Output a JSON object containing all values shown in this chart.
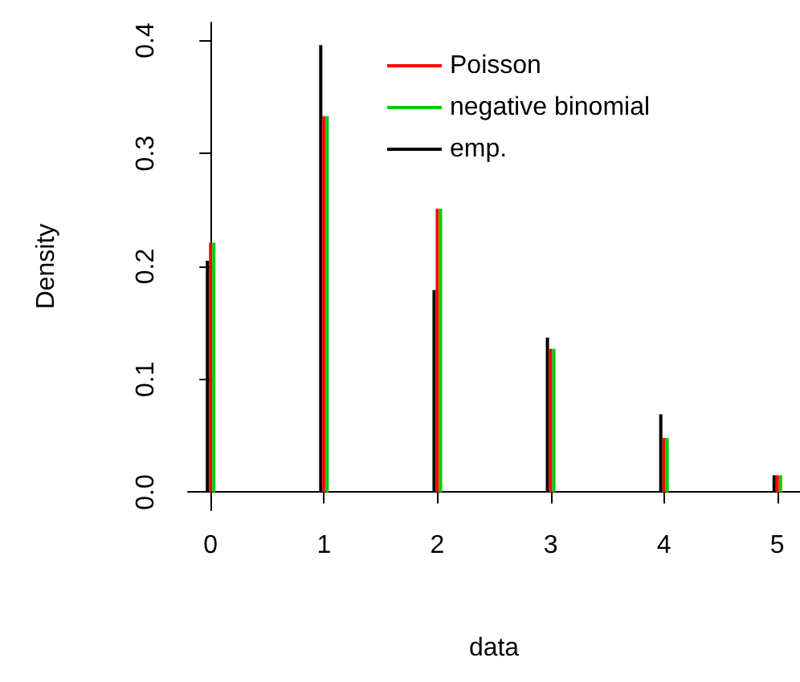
{
  "chart_data": {
    "type": "bar",
    "xlabel": "data",
    "ylabel": "Density",
    "x": [
      0,
      1,
      2,
      3,
      4,
      5
    ],
    "series": [
      {
        "name": "Poisson",
        "color": "#ff0000",
        "values": [
          0.221,
          0.333,
          0.251,
          0.127,
          0.048,
          0.015
        ]
      },
      {
        "name": "negative binomial",
        "color": "#00cc00",
        "values": [
          0.221,
          0.333,
          0.251,
          0.127,
          0.048,
          0.015
        ]
      },
      {
        "name": "emp.",
        "color": "#000000",
        "values": [
          0.205,
          0.396,
          0.179,
          0.137,
          0.069,
          0.015
        ]
      }
    ],
    "xlim": [
      -0.2,
      5.2
    ],
    "xticks": [
      0,
      1,
      2,
      3,
      4,
      5
    ],
    "ylim": [
      -0.016,
      0.416
    ],
    "yticks": [
      {
        "value": 0,
        "label": "0.0"
      },
      {
        "value": 0.1,
        "label": "0.1"
      },
      {
        "value": 0.2,
        "label": "0.2"
      },
      {
        "value": 0.3,
        "label": "0.3"
      },
      {
        "value": 0.4,
        "label": "0.4"
      }
    ],
    "grid": false,
    "legend": "top right"
  }
}
